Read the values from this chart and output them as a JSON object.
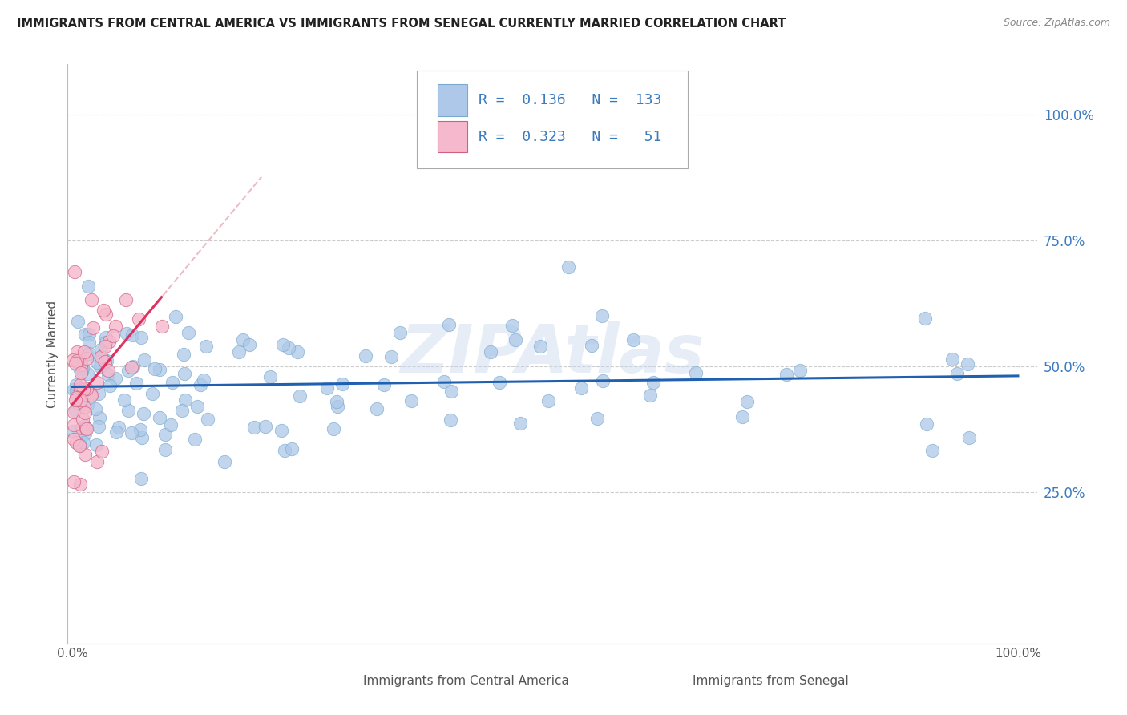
{
  "title": "IMMIGRANTS FROM CENTRAL AMERICA VS IMMIGRANTS FROM SENEGAL CURRENTLY MARRIED CORRELATION CHART",
  "source": "Source: ZipAtlas.com",
  "ylabel": "Currently Married",
  "watermark": "ZIPAtlas",
  "legend_R1": "0.136",
  "legend_N1": "133",
  "legend_R2": "0.323",
  "legend_N2": "51",
  "series1_color": "#adc8e8",
  "series1_edge": "#7aaad0",
  "series1_trend": "#2060b0",
  "series2_color": "#f5b8cc",
  "series2_edge": "#d06080",
  "series2_trend": "#e03060",
  "series2_trend_dashed": "#e8a0b0",
  "ytick_vals": [
    0.0,
    0.25,
    0.5,
    0.75,
    1.0
  ],
  "ytick_labels": [
    "",
    "25.0%",
    "50.0%",
    "75.0%",
    "100.0%"
  ],
  "value_color": "#3a7abf",
  "grid_color": "#cccccc",
  "title_fontsize": 10.5,
  "title_color": "#222222",
  "background": "#ffffff",
  "seed1": 42,
  "seed2": 77
}
